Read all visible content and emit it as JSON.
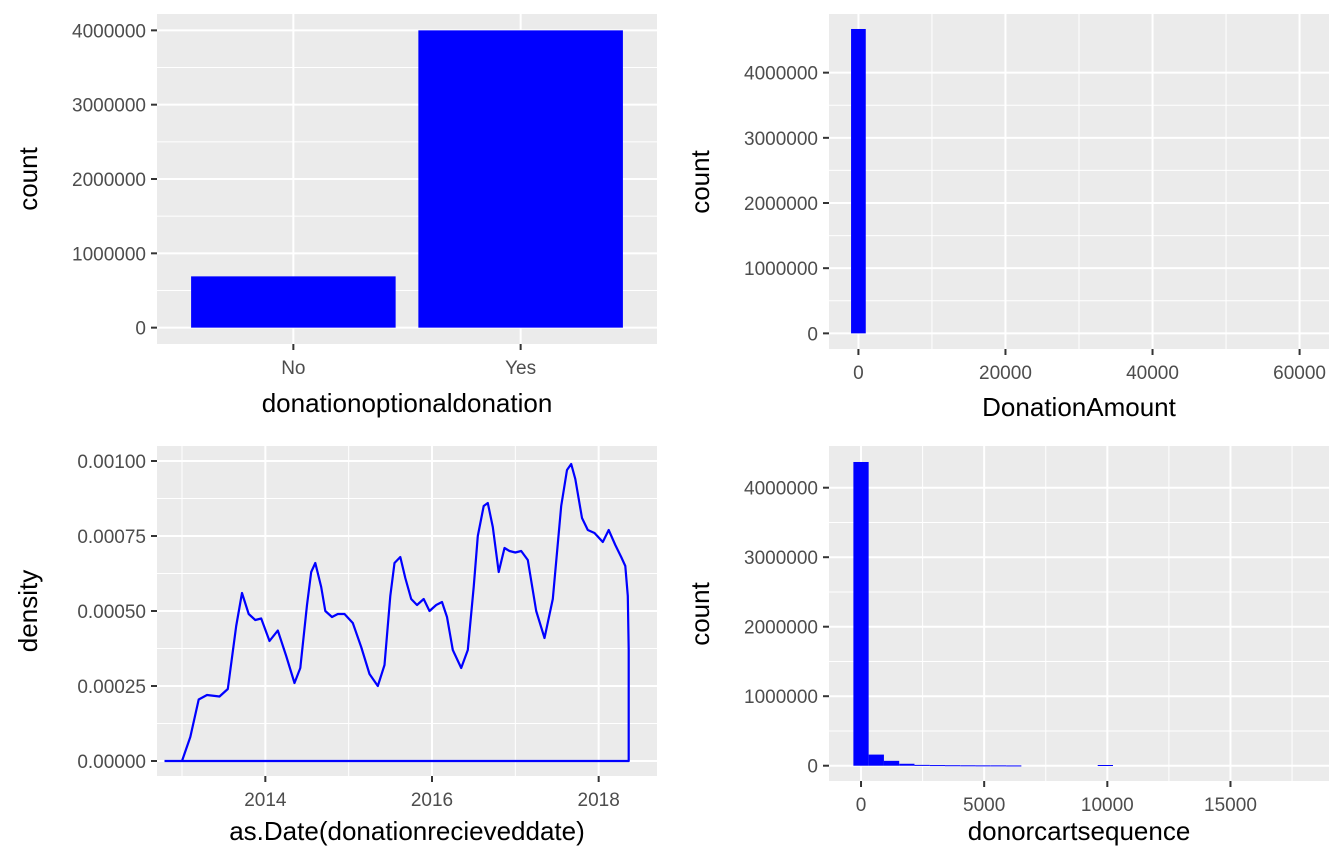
{
  "figure": {
    "layout": "2x2 grid",
    "panel_background": "#ebebeb",
    "gridline_color": "#ffffff",
    "fill_color": "#0000ff"
  },
  "chart_data": [
    {
      "type": "bar",
      "title": "",
      "xlabel": "donationoptionaldonation",
      "ylabel": "count",
      "categories": [
        "No",
        "Yes"
      ],
      "values": [
        690000,
        4000000
      ],
      "ylim": [
        -220000,
        4220000
      ],
      "yticks": [
        0,
        1000000,
        2000000,
        3000000,
        4000000
      ],
      "ytick_labels": [
        "0",
        "1000000",
        "2000000",
        "3000000",
        "4000000"
      ],
      "xtick_labels": [
        "No",
        "Yes"
      ],
      "grid": true,
      "color": "#0000ff"
    },
    {
      "type": "histogram",
      "title": "",
      "xlabel": "DonationAmount",
      "ylabel": "count",
      "xlim": [
        -4000,
        64000
      ],
      "ylim": [
        -240000,
        4900000
      ],
      "xticks": [
        0,
        20000,
        40000,
        60000
      ],
      "xtick_labels": [
        "0",
        "20000",
        "40000",
        "60000"
      ],
      "yticks": [
        0,
        1000000,
        2000000,
        3000000,
        4000000
      ],
      "ytick_labels": [
        "0",
        "1000000",
        "2000000",
        "3000000",
        "4000000"
      ],
      "bin_width": 2000,
      "bins": [
        {
          "x0": -1000,
          "x1": 1000,
          "count": 4670000
        }
      ],
      "grid": true,
      "color": "#0000ff"
    },
    {
      "type": "line",
      "title": "",
      "xlabel": "as.Date(donationrecieveddate)",
      "ylabel": "density",
      "x_unit": "year",
      "xlim": [
        2012.7,
        2018.7
      ],
      "ylim": [
        -5e-05,
        0.00105
      ],
      "xticks": [
        2014,
        2016,
        2018
      ],
      "xtick_labels": [
        "2014",
        "2016",
        "2018"
      ],
      "yticks": [
        0,
        0.00025,
        0.0005,
        0.00075,
        0.001
      ],
      "ytick_labels": [
        "0.00000",
        "0.00025",
        "0.00050",
        "0.00075",
        "0.00100"
      ],
      "x": [
        2012.79,
        2013.0,
        2013.1,
        2013.2,
        2013.3,
        2013.45,
        2013.55,
        2013.65,
        2013.72,
        2013.8,
        2013.88,
        2013.95,
        2014.05,
        2014.15,
        2014.25,
        2014.35,
        2014.42,
        2014.5,
        2014.55,
        2014.6,
        2014.67,
        2014.72,
        2014.8,
        2014.87,
        2014.95,
        2015.05,
        2015.15,
        2015.25,
        2015.35,
        2015.43,
        2015.5,
        2015.55,
        2015.62,
        2015.68,
        2015.75,
        2015.82,
        2015.9,
        2015.97,
        2016.05,
        2016.12,
        2016.18,
        2016.25,
        2016.35,
        2016.43,
        2016.5,
        2016.55,
        2016.62,
        2016.67,
        2016.73,
        2016.8,
        2016.87,
        2016.93,
        2017.0,
        2017.07,
        2017.15,
        2017.25,
        2017.35,
        2017.45,
        2017.55,
        2017.62,
        2017.67,
        2017.72,
        2017.8,
        2017.87,
        2017.95,
        2018.05,
        2018.12,
        2018.2,
        2018.27,
        2018.32,
        2018.35,
        2018.36,
        2018.36,
        2012.79
      ],
      "y": [
        0,
        0,
        8e-05,
        0.000205,
        0.00022,
        0.000215,
        0.00024,
        0.00045,
        0.00056,
        0.00049,
        0.00047,
        0.000475,
        0.0004,
        0.000435,
        0.00035,
        0.00026,
        0.00031,
        0.00052,
        0.00063,
        0.00066,
        0.00058,
        0.0005,
        0.00048,
        0.00049,
        0.00049,
        0.00046,
        0.00038,
        0.00029,
        0.00025,
        0.00032,
        0.00055,
        0.00066,
        0.00068,
        0.00061,
        0.00054,
        0.00052,
        0.00054,
        0.0005,
        0.00052,
        0.00053,
        0.00048,
        0.00037,
        0.00031,
        0.00037,
        0.00058,
        0.00075,
        0.00085,
        0.00086,
        0.00078,
        0.00063,
        0.00071,
        0.0007,
        0.000695,
        0.0007,
        0.00067,
        0.0005,
        0.00041,
        0.00054,
        0.00085,
        0.00097,
        0.00099,
        0.00094,
        0.00081,
        0.00077,
        0.00076,
        0.00073,
        0.00077,
        0.00072,
        0.00068,
        0.00065,
        0.00055,
        0.00037,
        0,
        0
      ],
      "grid": true,
      "color": "#0000ff"
    },
    {
      "type": "histogram",
      "title": "",
      "xlabel": "donorcartsequence",
      "ylabel": "count",
      "xlim": [
        -1300,
        19000
      ],
      "ylim": [
        -220000,
        4600000
      ],
      "xticks": [
        0,
        5000,
        10000,
        15000
      ],
      "xtick_labels": [
        "0",
        "5000",
        "10000",
        "15000"
      ],
      "yticks": [
        0,
        1000000,
        2000000,
        3000000,
        4000000
      ],
      "ytick_labels": [
        "0",
        "1000000",
        "2000000",
        "3000000",
        "4000000"
      ],
      "bin_width": 620,
      "bins": [
        {
          "x0": -310,
          "x1": 310,
          "count": 4370000
        },
        {
          "x0": 310,
          "x1": 930,
          "count": 160000
        },
        {
          "x0": 930,
          "x1": 1550,
          "count": 70000
        },
        {
          "x0": 1550,
          "x1": 2170,
          "count": 28000
        },
        {
          "x0": 2170,
          "x1": 2790,
          "count": 12000
        },
        {
          "x0": 2790,
          "x1": 3410,
          "count": 9000
        },
        {
          "x0": 3410,
          "x1": 4030,
          "count": 7000
        },
        {
          "x0": 4030,
          "x1": 4650,
          "count": 6000
        },
        {
          "x0": 4650,
          "x1": 5270,
          "count": 5000
        },
        {
          "x0": 5270,
          "x1": 5890,
          "count": 5000
        },
        {
          "x0": 5890,
          "x1": 6510,
          "count": 4000
        },
        {
          "x0": 9610,
          "x1": 10230,
          "count": 10000
        }
      ],
      "grid": true,
      "color": "#0000ff"
    }
  ]
}
